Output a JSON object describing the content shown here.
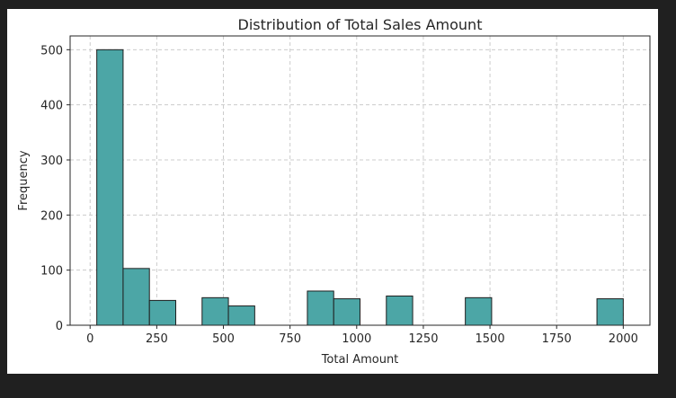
{
  "chart_data": {
    "type": "bar",
    "subtype": "histogram",
    "title": "Distribution of Total Sales Amount",
    "xlabel": "Total Amount",
    "ylabel": "Frequency",
    "xlim": [
      -75,
      2100
    ],
    "ylim": [
      0,
      525
    ],
    "xticks": [
      0,
      250,
      500,
      750,
      1000,
      1250,
      1500,
      1750,
      2000
    ],
    "yticks": [
      0,
      100,
      200,
      300,
      400,
      500
    ],
    "grid": true,
    "bin_range": [
      25,
      2000
    ],
    "bin_width": 98.75,
    "bins": [
      {
        "start": 25,
        "end": 123.75,
        "count": 500
      },
      {
        "start": 123.75,
        "end": 222.5,
        "count": 103
      },
      {
        "start": 222.5,
        "end": 321.25,
        "count": 45
      },
      {
        "start": 321.25,
        "end": 420,
        "count": 0
      },
      {
        "start": 420,
        "end": 518.75,
        "count": 50
      },
      {
        "start": 518.75,
        "end": 617.5,
        "count": 35
      },
      {
        "start": 617.5,
        "end": 716.25,
        "count": 0
      },
      {
        "start": 716.25,
        "end": 815,
        "count": 0
      },
      {
        "start": 815,
        "end": 913.75,
        "count": 62
      },
      {
        "start": 913.75,
        "end": 1012.5,
        "count": 48
      },
      {
        "start": 1012.5,
        "end": 1111.25,
        "count": 0
      },
      {
        "start": 1111.25,
        "end": 1210,
        "count": 53
      },
      {
        "start": 1210,
        "end": 1308.75,
        "count": 0
      },
      {
        "start": 1308.75,
        "end": 1407.5,
        "count": 0
      },
      {
        "start": 1407.5,
        "end": 1506.25,
        "count": 50
      },
      {
        "start": 1506.25,
        "end": 1605,
        "count": 0
      },
      {
        "start": 1605,
        "end": 1703.75,
        "count": 0
      },
      {
        "start": 1703.75,
        "end": 1802.5,
        "count": 0
      },
      {
        "start": 1802.5,
        "end": 1901.25,
        "count": 0
      },
      {
        "start": 1901.25,
        "end": 2000,
        "count": 48
      }
    ],
    "bar_color": "#4ca6a6",
    "edge_color": "#1f1f1f",
    "grid_color": "#cccccc"
  }
}
